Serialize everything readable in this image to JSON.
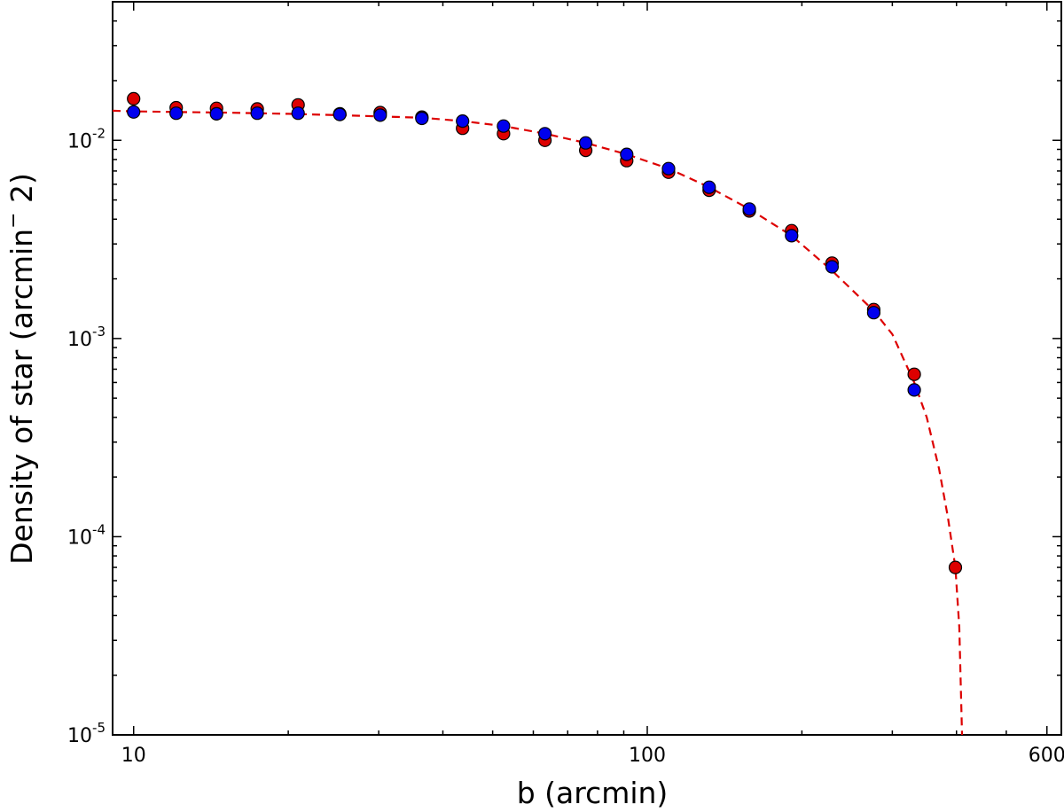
{
  "chart_data": {
    "type": "scatter",
    "title": "",
    "xlabel": "b (arcmin)",
    "ylabel_main": "Density of star (arcmin",
    "ylabel_sup": "−",
    "ylabel_tail": " 2)",
    "xscale": "log",
    "yscale": "log",
    "xlim": [
      9.1,
      640
    ],
    "ylim": [
      1e-05,
      0.05
    ],
    "grid": false,
    "legend": "none",
    "x_ticks": [
      {
        "value": 10,
        "label": "10"
      },
      {
        "value": 100,
        "label": "100"
      },
      {
        "value": 600,
        "label": "600"
      }
    ],
    "y_ticks": [
      {
        "value": 0.01,
        "base": "10",
        "exp": "-2"
      },
      {
        "value": 0.001,
        "base": "10",
        "exp": "-3"
      },
      {
        "value": 0.0001,
        "base": "10",
        "exp": "-4"
      },
      {
        "value": 1e-05,
        "base": "10",
        "exp": "-5"
      }
    ],
    "series": [
      {
        "color": "#dd0000",
        "marker": "circle",
        "points": [
          [
            10.0,
            0.0162
          ],
          [
            12.1,
            0.0146
          ],
          [
            14.5,
            0.0145
          ],
          [
            17.4,
            0.0144
          ],
          [
            20.9,
            0.0151
          ],
          [
            25.2,
            0.0136
          ],
          [
            30.2,
            0.0138
          ],
          [
            36.4,
            0.0131
          ],
          [
            43.7,
            0.0115
          ],
          [
            52.5,
            0.0108
          ],
          [
            63.2,
            0.01
          ],
          [
            75.9,
            0.0089
          ],
          [
            91.2,
            0.0079
          ],
          [
            110.0,
            0.0069
          ],
          [
            132.0,
            0.0056
          ],
          [
            158.0,
            0.0044
          ],
          [
            191.0,
            0.0035
          ],
          [
            229.0,
            0.0024
          ],
          [
            276.0,
            0.0014
          ],
          [
            331.0,
            0.00066
          ],
          [
            398.0,
            7e-05
          ]
        ]
      },
      {
        "color": "#0000ee",
        "marker": "circle",
        "points": [
          [
            10.0,
            0.0139
          ],
          [
            12.1,
            0.0137
          ],
          [
            14.5,
            0.0136
          ],
          [
            17.4,
            0.0137
          ],
          [
            20.9,
            0.0137
          ],
          [
            25.2,
            0.0135
          ],
          [
            30.2,
            0.0134
          ],
          [
            36.4,
            0.0129
          ],
          [
            43.7,
            0.0125
          ],
          [
            52.5,
            0.0118
          ],
          [
            63.2,
            0.0108
          ],
          [
            75.9,
            0.0097
          ],
          [
            91.2,
            0.0085
          ],
          [
            110.0,
            0.0072
          ],
          [
            132.0,
            0.0058
          ],
          [
            158.0,
            0.0045
          ],
          [
            191.0,
            0.0033
          ],
          [
            229.0,
            0.0023
          ],
          [
            276.0,
            0.00135
          ],
          [
            331.0,
            0.00055
          ]
        ]
      }
    ],
    "fit_line": {
      "color": "#dd0000",
      "style": "dashed",
      "points": [
        [
          9.1,
          0.0141
        ],
        [
          10,
          0.014
        ],
        [
          12,
          0.0139
        ],
        [
          15,
          0.0138
        ],
        [
          20,
          0.0136
        ],
        [
          25,
          0.0134
        ],
        [
          30,
          0.0132
        ],
        [
          36.4,
          0.013
        ],
        [
          43.7,
          0.0125
        ],
        [
          52.5,
          0.0118
        ],
        [
          63.2,
          0.0108
        ],
        [
          75.9,
          0.0097
        ],
        [
          91.2,
          0.0085
        ],
        [
          110,
          0.0072
        ],
        [
          132,
          0.0058
        ],
        [
          158,
          0.0045
        ],
        [
          191,
          0.0033
        ],
        [
          229,
          0.0022
        ],
        [
          276,
          0.00138
        ],
        [
          300,
          0.00105
        ],
        [
          331,
          0.0006
        ],
        [
          350,
          0.0004
        ],
        [
          370,
          0.00022
        ],
        [
          385,
          0.000125
        ],
        [
          398,
          7e-05
        ],
        [
          405,
          3.5e-05
        ],
        [
          410,
          1e-05
        ]
      ]
    }
  }
}
